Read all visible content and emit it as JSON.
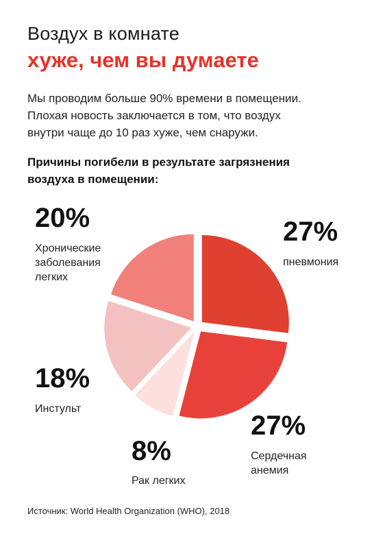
{
  "title_line1": "Воздух в комнате",
  "title_line2": "хуже, чем вы думаете",
  "intro_lines": [
    "Мы проводим больше 90% времени в помещении.",
    "Плохая новость заключается в том, что воздух",
    "внутри чаще до 10 раз хуже, чем снаружи."
  ],
  "colors": {
    "title_accent": "#e5332a",
    "slices": [
      "#e0402f",
      "#e8413a",
      "#fde0de",
      "#f4c1c1",
      "#f08079"
    ]
  },
  "chart_data": {
    "type": "pie",
    "title_lines": [
      "Причины погибели в результате загрязнения",
      "воздуха в помещении:"
    ],
    "unit": "%",
    "slices": [
      {
        "label_lines": [
          "пневмония"
        ],
        "value": 27,
        "value_label": "27%"
      },
      {
        "label_lines": [
          "Сердечная",
          "анемия"
        ],
        "value": 27,
        "value_label": "27%"
      },
      {
        "label_lines": [
          "Рак легких"
        ],
        "value": 8,
        "value_label": "8%"
      },
      {
        "label_lines": [
          "Инстульт"
        ],
        "value": 18,
        "value_label": "18%"
      },
      {
        "label_lines": [
          "Хронические",
          "заболевания",
          "легких"
        ],
        "value": 20,
        "value_label": "20%"
      }
    ]
  },
  "source": "Источник: World Health Organization (WHO), 2018"
}
